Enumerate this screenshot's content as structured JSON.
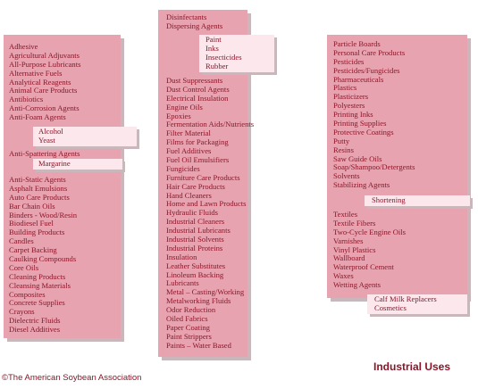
{
  "columns": [
    {
      "sections": [
        [
          "Adhesive",
          "Agricultural Adjuvants",
          "All-Purpose Lubricants",
          "Alternative Fuels",
          "Analytical Reagents",
          "Animal Care Products",
          "Antibiotics",
          "Anti-Corrosion Agents",
          "Anti-Foam Agents"
        ],
        [
          "Anti-Spattering Agents"
        ],
        [
          "Anti-Static Agents",
          "Asphalt Emulsions",
          "Auto Care Products",
          "Bar Chain Oils",
          "Binders - Wood/Resin",
          "Biodiesel Fuel",
          "Building Products",
          "Candles",
          "Carpet Backing",
          "Caulking Compounds",
          "Core Oils",
          "Cleaning Products",
          "Cleansing Materials",
          "Composites",
          "Concrete Supplies",
          "Crayons",
          "Dielectric Fluids",
          "Diesel Additives"
        ]
      ],
      "notes": [
        [
          "Alcohol",
          "Yeast"
        ],
        [
          "Margarine"
        ]
      ]
    },
    {
      "sections": [
        [
          "Disinfectants",
          "Dispersing Agents"
        ],
        [
          "Dust Suppressants",
          "Dust Control Agents",
          "Electrical Insulation",
          "Engine Oils",
          "Epoxies",
          "Fermentation Aids/Nutrients",
          "Filter Material",
          "Films for Packaging",
          "Fuel Additives",
          "Fuel Oil Emulsifiers",
          "Fungicides",
          "Furniture Care Products",
          "Hair Care Products",
          "Hand Cleaners",
          "Home and Lawn Products",
          "Hydraulic Fluids",
          "Industrial Cleaners",
          "Industrial Lubricants",
          "Industrial Solvents",
          "Industrial Proteins",
          "Insulation",
          "Leather Substitutes",
          "Linoleum Backing",
          "Lubricants",
          "Metal – Casting/Working",
          "Metalworking Fluids",
          "Odor Reduction",
          "Oiled Fabrics",
          "Paper Coating",
          "Paint Strippers",
          "Paints – Water Based"
        ]
      ],
      "notes": [
        [
          "Paint",
          "Inks",
          "Insecticides",
          "Rubber"
        ]
      ]
    },
    {
      "sections": [
        [
          "Particle Boards",
          "Personal Care Products",
          "Pesticides",
          "Pesticides/Fungicides",
          "Pharmaceuticals",
          "Plastics",
          "Plasticizers",
          "Polyesters",
          "Printing Inks",
          "Printing Supplies",
          "Protective Coatings",
          "Putty",
          "Resins",
          "Saw Guide Oils",
          "Soap/Shampoo/Detergents",
          "Solvents",
          "Stabilizing Agents"
        ],
        [
          "Textiles",
          "Textile Fibers",
          "Two-Cycle Engine Oils",
          "Varnishes",
          "Vinyl Plastics",
          "Wallboard",
          "Waterproof Cement",
          "Waxes",
          "Wetting Agents"
        ]
      ],
      "notes": [
        [
          "Shortening"
        ],
        [
          "Calf Milk Replacers",
          "Cosmetics"
        ]
      ]
    }
  ],
  "footer": {
    "copyright": "©The American Soybean Association",
    "caption": "Industrial Uses"
  },
  "colors": {
    "panel": "#e8a3b0",
    "note": "#fbe7ec",
    "text": "#8b1528",
    "shadow": "#c9b7bb"
  }
}
